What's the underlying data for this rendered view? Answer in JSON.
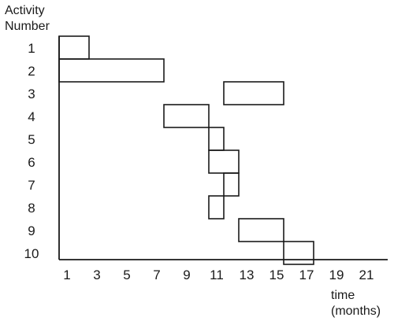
{
  "y_title": [
    "Activity",
    "Number"
  ],
  "x_title": [
    "time",
    "(months)"
  ],
  "x_ticks": [
    "1",
    "3",
    "5",
    "7",
    "9",
    "11",
    "13",
    "15",
    "17",
    "19",
    "21"
  ],
  "activities": [
    {
      "number": "1",
      "start": 0,
      "end": 2
    },
    {
      "number": "2",
      "start": 0,
      "end": 7
    },
    {
      "number": "3",
      "start": 11,
      "end": 15
    },
    {
      "number": "4",
      "start": 7,
      "end": 10
    },
    {
      "number": "5",
      "start": 10,
      "end": 11
    },
    {
      "number": "6",
      "start": 10,
      "end": 12
    },
    {
      "number": "7",
      "start": 11,
      "end": 12
    },
    {
      "number": "8",
      "start": 10,
      "end": 11
    },
    {
      "number": "9",
      "start": 12,
      "end": 15
    },
    {
      "number": "10",
      "start": 15,
      "end": 17
    }
  ]
}
